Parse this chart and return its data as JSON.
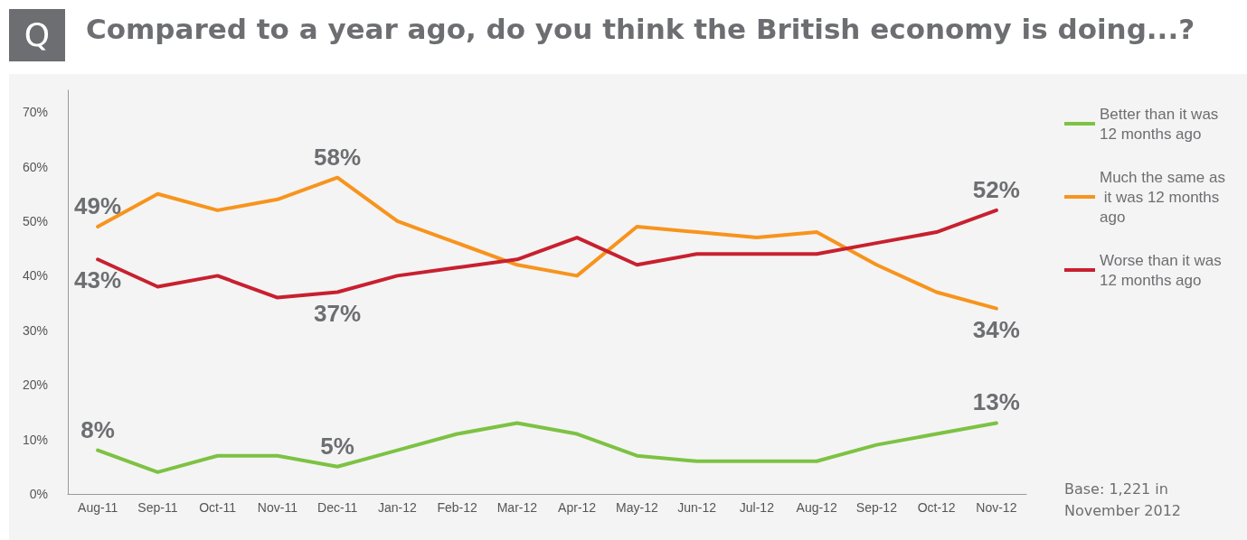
{
  "chart_data": {
    "type": "line",
    "title": "Compared to a year ago, do you think the British economy is doing...?",
    "categories": [
      "Aug-11",
      "Sep-11",
      "Oct-11",
      "Nov-11",
      "Dec-11",
      "Jan-12",
      "Feb-12",
      "Mar-12",
      "Apr-12",
      "May-12",
      "Jun-12",
      "Jul-12",
      "Aug-12",
      "Sep-12",
      "Oct-12",
      "Nov-12"
    ],
    "series": [
      {
        "name": "Better than it was 12 months ago",
        "color": "#7dc243",
        "values": [
          8,
          4,
          7,
          7,
          5,
          8,
          11,
          13,
          11,
          7,
          6,
          6,
          6,
          9,
          11,
          13
        ],
        "value_labels": [
          "8%",
          null,
          null,
          null,
          "5%",
          null,
          null,
          null,
          null,
          null,
          null,
          null,
          null,
          null,
          null,
          "13%"
        ]
      },
      {
        "name": "Much the same as it was 12 months ago",
        "color": "#f7941d",
        "values": [
          49,
          55,
          52,
          54,
          58,
          50,
          46,
          42,
          40,
          49,
          48,
          47,
          48,
          42,
          37,
          34
        ],
        "value_labels": [
          "49%",
          null,
          null,
          null,
          "58%",
          null,
          null,
          null,
          null,
          null,
          null,
          null,
          null,
          null,
          null,
          "34%"
        ]
      },
      {
        "name": "Worse than it was 12 months ago",
        "color": "#c8202f",
        "values": [
          43,
          38,
          40,
          36,
          37,
          40,
          41.5,
          43,
          47,
          42,
          44,
          44,
          44,
          46,
          48,
          52
        ],
        "value_labels": [
          "43%",
          null,
          null,
          null,
          "37%",
          null,
          null,
          null,
          null,
          null,
          null,
          null,
          null,
          null,
          null,
          "52%"
        ]
      }
    ],
    "ylim": [
      0,
      74
    ],
    "yticks": [
      {
        "value": 0,
        "label": "0%"
      },
      {
        "value": 10,
        "label": "10%"
      },
      {
        "value": 20,
        "label": "20%"
      },
      {
        "value": 30,
        "label": "30%"
      },
      {
        "value": 40,
        "label": "40%"
      },
      {
        "value": 50,
        "label": "50%"
      },
      {
        "value": 60,
        "label": "60%"
      },
      {
        "value": 70,
        "label": "70%"
      }
    ],
    "grid": false,
    "legend": "right",
    "marker": "none",
    "line_style": "solid",
    "annotations": [
      "Q",
      "Base: 1,221 in November 2012"
    ]
  }
}
